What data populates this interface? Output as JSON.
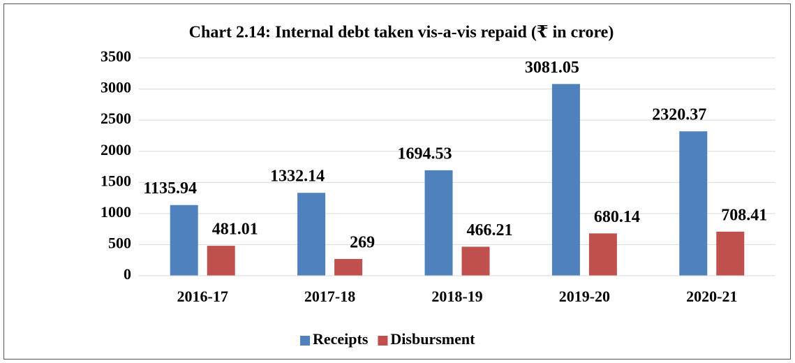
{
  "chart_data": {
    "type": "bar",
    "title": "Chart 2.14: Internal debt taken vis-a-vis repaid (₹ in crore)",
    "categories": [
      "2016-17",
      "2017-18",
      "2018-19",
      "2019-20",
      "2020-21"
    ],
    "series": [
      {
        "name": "Receipts",
        "color": "#4f81bd",
        "values": [
          1135.94,
          1332.14,
          1694.53,
          3081.05,
          2320.37
        ]
      },
      {
        "name": "Disbursment",
        "color": "#c0504d",
        "values": [
          481.01,
          269,
          466.21,
          680.14,
          708.41
        ]
      }
    ],
    "ylim": [
      0,
      3500
    ],
    "yticks": [
      0,
      500,
      1000,
      1500,
      2000,
      2500,
      3000,
      3500
    ],
    "grid": true,
    "legend": "bottom"
  }
}
